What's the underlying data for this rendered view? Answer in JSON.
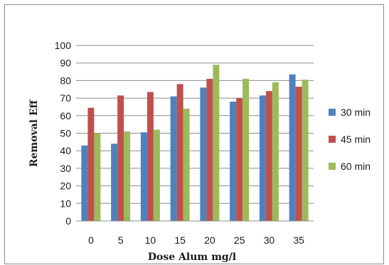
{
  "chart_data": {
    "type": "bar",
    "categories": [
      "0",
      "5",
      "10",
      "15",
      "20",
      "25",
      "30",
      "35"
    ],
    "series": [
      {
        "name": "30 min",
        "color": "#4f81bd",
        "values": [
          43,
          44,
          50.5,
          71,
          76,
          68,
          71.5,
          83.5
        ]
      },
      {
        "name": "45 min",
        "color": "#c0504d",
        "values": [
          64.5,
          71.5,
          73.5,
          78,
          81,
          70,
          74,
          76.5
        ]
      },
      {
        "name": "60 min",
        "color": "#9bbb59",
        "values": [
          50,
          51,
          52,
          64,
          89,
          81,
          79,
          80.5
        ]
      }
    ],
    "xlabel": "Dose Alum mg/l",
    "ylabel": "Removal Eff",
    "ylim": [
      0,
      100
    ],
    "yticks": [
      "0",
      "10",
      "20",
      "30",
      "40",
      "50",
      "60",
      "70",
      "80",
      "90",
      "100"
    ],
    "grid": true,
    "legend_position": "right"
  }
}
